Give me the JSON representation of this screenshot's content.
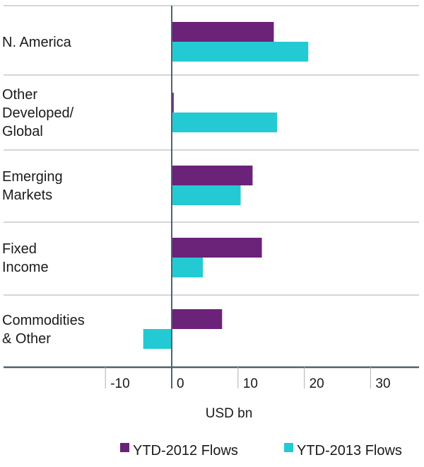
{
  "chart_data": {
    "type": "bar",
    "orientation": "horizontal",
    "title": "",
    "xlabel": "USD bn",
    "ylabel": "",
    "xlim": [
      -20,
      36
    ],
    "xticks": [
      -10,
      0,
      10,
      20,
      30
    ],
    "xtick_labels": [
      "-10",
      "0",
      "10",
      "20",
      "30"
    ],
    "categories": [
      [
        "N. America"
      ],
      [
        "Other",
        "Developed/",
        "Global"
      ],
      [
        "Emerging",
        "Markets"
      ],
      [
        "Fixed",
        "Income"
      ],
      [
        "Commodities",
        "& Other"
      ]
    ],
    "series": [
      {
        "name": "YTD-2012 Flows",
        "color": "#6b2279",
        "values": [
          15.4,
          0.3,
          12.2,
          13.6,
          7.6
        ]
      },
      {
        "name": "YTD-2013 Flows",
        "color": "#24cad3",
        "values": [
          20.6,
          15.9,
          10.4,
          4.7,
          -4.3
        ]
      }
    ],
    "legend": {
      "position": "bottom-right"
    },
    "grid": false
  }
}
